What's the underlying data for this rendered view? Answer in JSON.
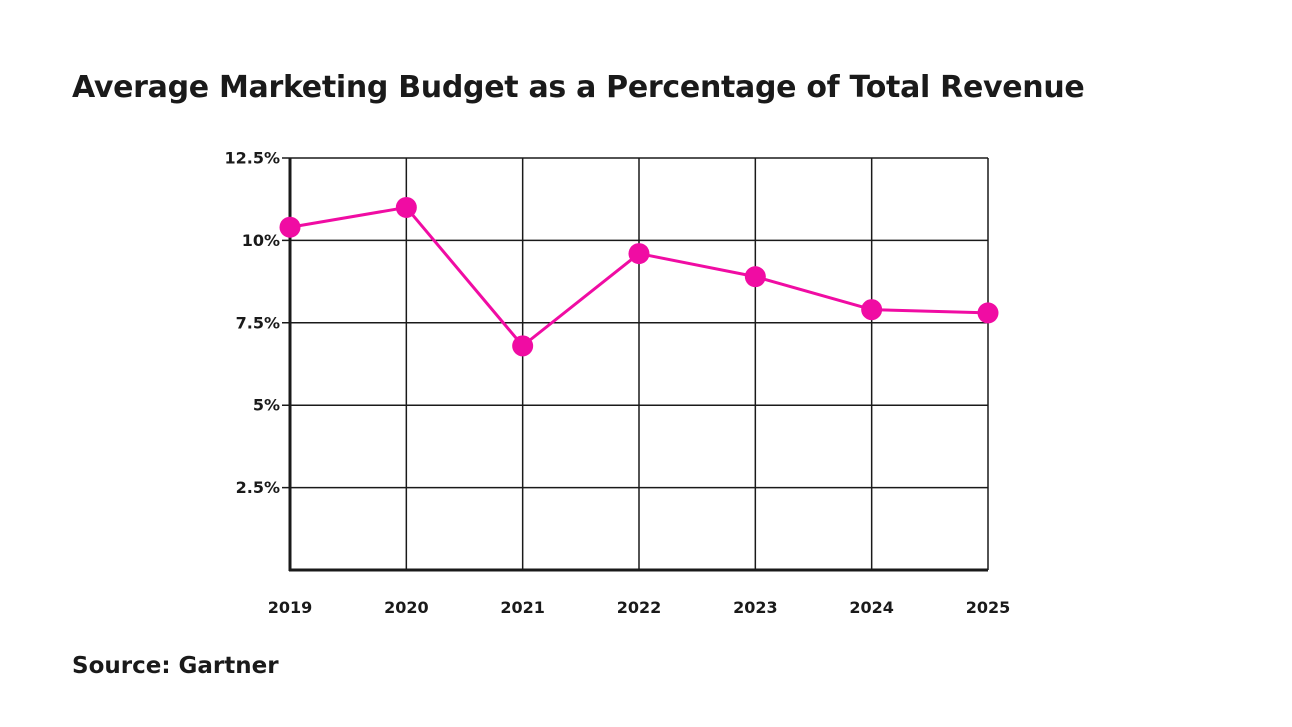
{
  "source": "Source: Gartner",
  "colors": {
    "series": "#f00ca3",
    "grid": "#1a1a1a",
    "text": "#1a1a1a"
  },
  "chart_data": {
    "type": "line",
    "title": "Average Marketing Budget as a Percentage of Total Revenue",
    "xlabel": "",
    "ylabel": "",
    "categories": [
      "2019",
      "2020",
      "2021",
      "2022",
      "2023",
      "2024",
      "2025"
    ],
    "series": [
      {
        "values": [
          10.4,
          11.0,
          6.8,
          9.6,
          8.9,
          7.9,
          7.8
        ]
      }
    ],
    "ylim": [
      0,
      12.5
    ],
    "yticks": [
      {
        "value": 2.5,
        "label": "2.5%"
      },
      {
        "value": 5,
        "label": "5%"
      },
      {
        "value": 7.5,
        "label": "7.5%"
      },
      {
        "value": 10,
        "label": "10%"
      },
      {
        "value": 12.5,
        "label": "12.5%"
      }
    ],
    "grid": true,
    "legend": "none",
    "markers": true
  }
}
